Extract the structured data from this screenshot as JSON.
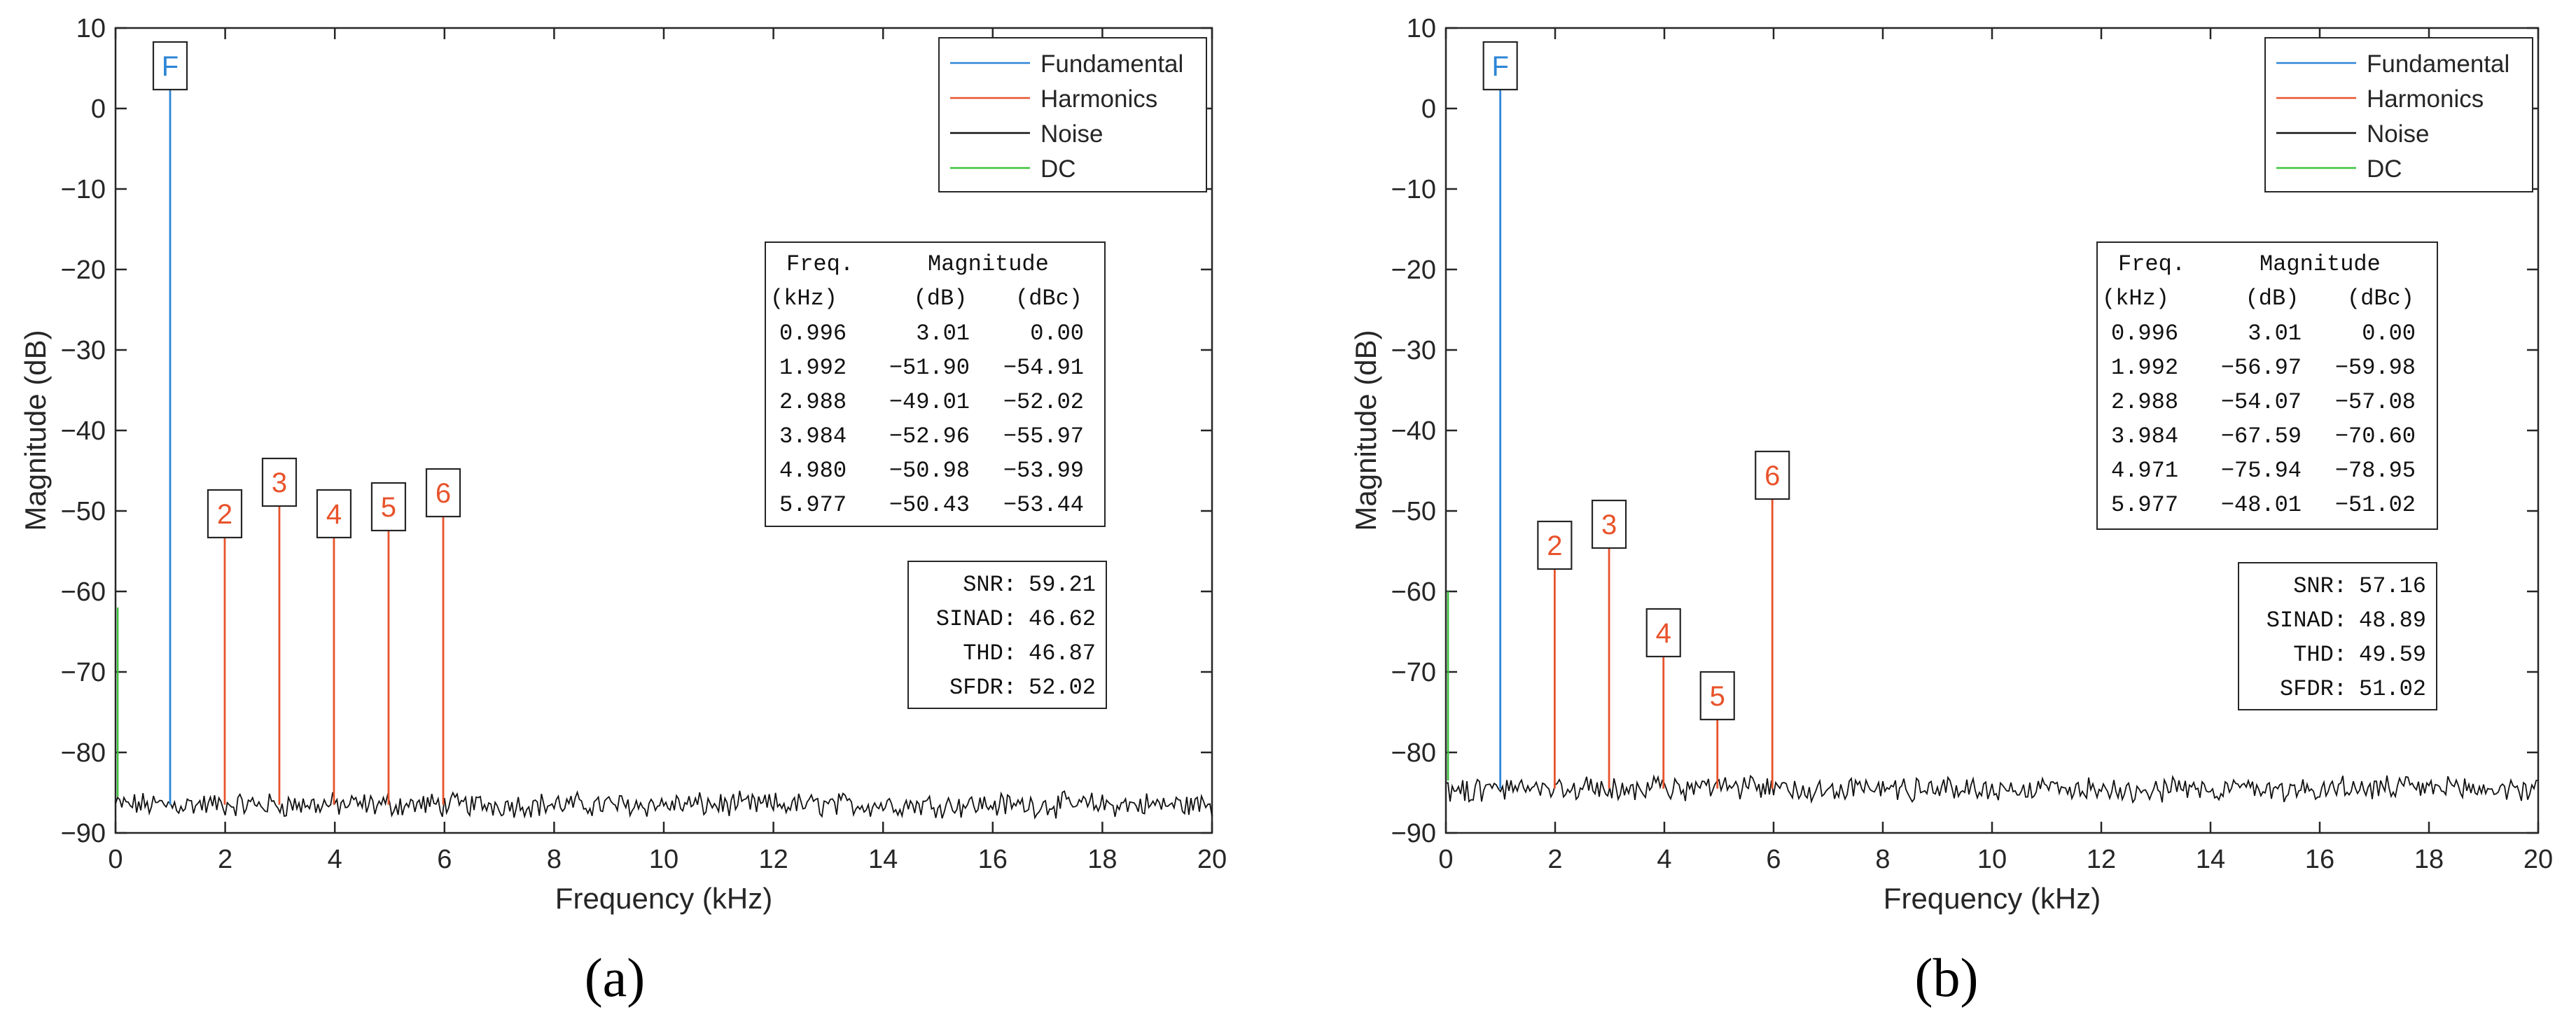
{
  "chart_data": [
    {
      "type": "line",
      "caption": "(a)",
      "xlabel": "Frequency (kHz)",
      "ylabel": "Magnitude (dB)",
      "xlim": [
        0,
        20
      ],
      "ylim": [
        -90,
        10
      ],
      "xticks": [
        "0",
        "2",
        "4",
        "6",
        "8",
        "10",
        "12",
        "14",
        "16",
        "18",
        "20"
      ],
      "yticks": [
        "10",
        "0",
        "−10",
        "−20",
        "−30",
        "−40",
        "−50",
        "−60",
        "−70",
        "−80",
        "−90"
      ],
      "legend": {
        "position": "top-right",
        "entries": [
          {
            "label": "Fundamental",
            "color": "#2e86d6"
          },
          {
            "label": "Harmonics",
            "color": "#e8532b"
          },
          {
            "label": "Noise",
            "color": "#111111"
          },
          {
            "label": "DC",
            "color": "#3cc33c"
          }
        ]
      },
      "noise_floor_db": -86.5,
      "dc_value_db": -62,
      "peaks": [
        {
          "label": "F",
          "freq": 0.996,
          "mag": 3.01,
          "kind": "fundamental"
        },
        {
          "label": "2",
          "freq": 1.992,
          "mag": -51.9,
          "kind": "harmonic"
        },
        {
          "label": "3",
          "freq": 2.988,
          "mag": -49.01,
          "kind": "harmonic"
        },
        {
          "label": "4",
          "freq": 3.984,
          "mag": -52.96,
          "kind": "harmonic"
        },
        {
          "label": "5",
          "freq": 4.98,
          "mag": -50.98,
          "kind": "harmonic"
        },
        {
          "label": "6",
          "freq": 5.977,
          "mag": -50.43,
          "kind": "harmonic"
        }
      ],
      "table": {
        "header1": [
          "Freq.",
          "Magnitude"
        ],
        "header2": [
          "(kHz)",
          "(dB)",
          "(dBc)"
        ],
        "rows": [
          [
            "0.996",
            "3.01",
            "0.00"
          ],
          [
            "1.992",
            "−51.90",
            "−54.91"
          ],
          [
            "2.988",
            "−49.01",
            "−52.02"
          ],
          [
            "3.984",
            "−52.96",
            "−55.97"
          ],
          [
            "4.980",
            "−50.98",
            "−53.99"
          ],
          [
            "5.977",
            "−50.43",
            "−53.44"
          ]
        ]
      },
      "metrics": [
        {
          "label": "SNR:",
          "value": "59.21"
        },
        {
          "label": "SINAD:",
          "value": "46.62"
        },
        {
          "label": "THD:",
          "value": "46.87"
        },
        {
          "label": "SFDR:",
          "value": "52.02"
        }
      ]
    },
    {
      "type": "line",
      "caption": "(b)",
      "xlabel": "Frequency (kHz)",
      "ylabel": "Magnitude (dB)",
      "xlim": [
        0,
        20
      ],
      "ylim": [
        -90,
        10
      ],
      "xticks": [
        "0",
        "2",
        "4",
        "6",
        "8",
        "10",
        "12",
        "14",
        "16",
        "18",
        "20"
      ],
      "yticks": [
        "10",
        "0",
        "−10",
        "−20",
        "−30",
        "−40",
        "−50",
        "−60",
        "−70",
        "−80",
        "−90"
      ],
      "legend": {
        "position": "top-right",
        "entries": [
          {
            "label": "Fundamental",
            "color": "#2e86d6"
          },
          {
            "label": "Harmonics",
            "color": "#e8532b"
          },
          {
            "label": "Noise",
            "color": "#111111"
          },
          {
            "label": "DC",
            "color": "#3cc33c"
          }
        ]
      },
      "noise_floor_db": -84.5,
      "dc_value_db": -60,
      "peaks": [
        {
          "label": "F",
          "freq": 0.996,
          "mag": 3.01,
          "kind": "fundamental"
        },
        {
          "label": "2",
          "freq": 1.992,
          "mag": -56.97,
          "kind": "harmonic"
        },
        {
          "label": "3",
          "freq": 2.988,
          "mag": -54.07,
          "kind": "harmonic"
        },
        {
          "label": "4",
          "freq": 3.984,
          "mag": -67.59,
          "kind": "harmonic"
        },
        {
          "label": "5",
          "freq": 4.971,
          "mag": -75.94,
          "kind": "harmonic"
        },
        {
          "label": "6",
          "freq": 5.977,
          "mag": -48.01,
          "kind": "harmonic"
        }
      ],
      "table": {
        "header1": [
          "Freq.",
          "Magnitude"
        ],
        "header2": [
          "(kHz)",
          "(dB)",
          "(dBc)"
        ],
        "rows": [
          [
            "0.996",
            "3.01",
            "0.00"
          ],
          [
            "1.992",
            "−56.97",
            "−59.98"
          ],
          [
            "2.988",
            "−54.07",
            "−57.08"
          ],
          [
            "3.984",
            "−67.59",
            "−70.60"
          ],
          [
            "4.971",
            "−75.94",
            "−78.95"
          ],
          [
            "5.977",
            "−48.01",
            "−51.02"
          ]
        ]
      },
      "metrics": [
        {
          "label": "SNR:",
          "value": "57.16"
        },
        {
          "label": "SINAD:",
          "value": "48.89"
        },
        {
          "label": "THD:",
          "value": "49.59"
        },
        {
          "label": "SFDR:",
          "value": "51.02"
        }
      ]
    }
  ]
}
